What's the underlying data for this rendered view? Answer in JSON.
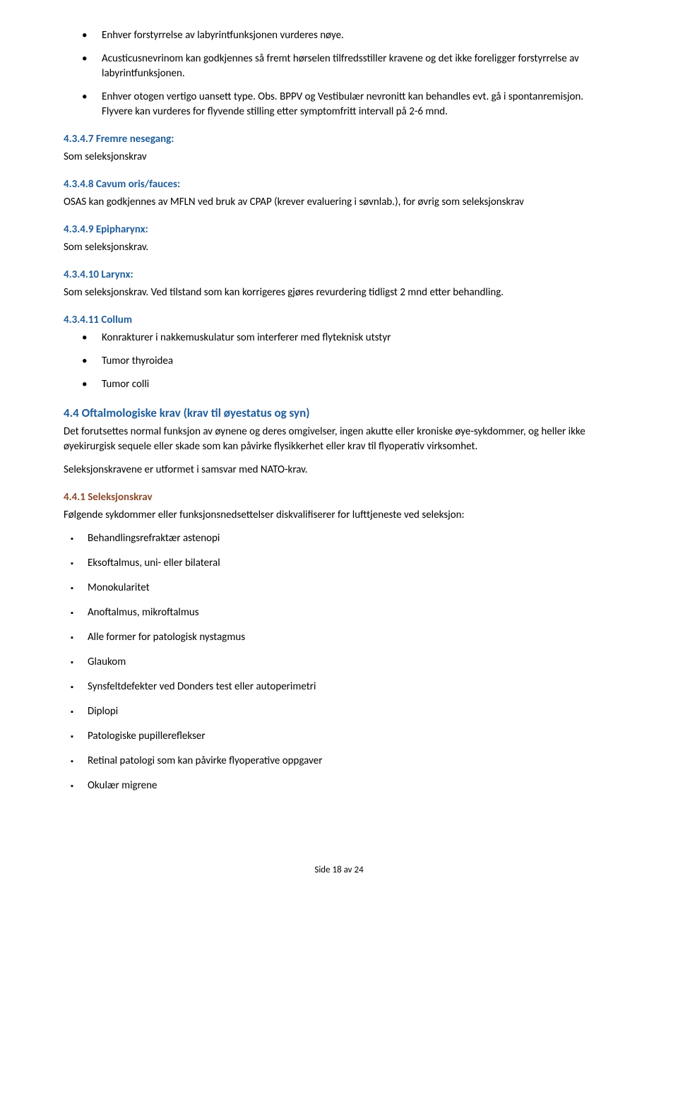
{
  "colors": {
    "heading_blue": "#1f5d9a",
    "heading_brown": "#8b4a2b",
    "text": "#000000",
    "background": "#ffffff"
  },
  "typography": {
    "body_fontsize_pt": 11,
    "heading_fontsize_pt": 12,
    "font_family": "Segoe UI / Calibri"
  },
  "top_bullets": [
    "Enhver forstyrrelse av labyrintfunksjonen vurderes nøye.",
    "Acusticusnevrinom kan godkjennes så fremt hørselen tilfredsstiller kravene og det ikke foreligger forstyrrelse av labyrintfunksjonen.",
    "Enhver otogen vertigo uansett type. Obs. BPPV og Vestibulær nevronitt kan behandles evt. gå i spontanremisjon. Flyvere kan vurderes for flyvende stilling etter symptomfritt intervall på 2-6 mnd."
  ],
  "s4347": {
    "title": "4.3.4.7 Fremre nesegang:",
    "body": "Som seleksjonskrav"
  },
  "s4348": {
    "title": "4.3.4.8 Cavum oris/fauces:",
    "body": "OSAS kan godkjennes av MFLN ved bruk av CPAP (krever evaluering i søvnlab.), for øvrig som seleksjonskrav"
  },
  "s4349": {
    "title": "4.3.4.9 Epipharynx:",
    "body": "Som seleksjonskrav."
  },
  "s43410": {
    "title": "4.3.4.10 Larynx:",
    "body": "Som seleksjonskrav. Ved tilstand som kan korrigeres gjøres revurdering tidligst 2 mnd etter behandling."
  },
  "s43411": {
    "title": "4.3.4.11  Collum",
    "bullets": [
      "Konrakturer i nakkemuskulatur som interferer med flyteknisk utstyr",
      "Tumor thyroidea",
      "Tumor colli"
    ]
  },
  "s44": {
    "title": "4.4 Oftalmologiske krav (krav til øyestatus og syn)",
    "body1": "Det forutsettes normal funksjon av øynene og deres omgivelser, ingen akutte eller kroniske øye-sykdommer, og heller ikke øyekirurgisk sequele eller skade som kan påvirke flysikkerhet eller krav til flyoperativ virksomhet.",
    "body2": "Seleksjonskravene er utformet i samsvar med NATO-krav."
  },
  "s441": {
    "title": "4.4.1 Seleksjonskrav",
    "intro": "Følgende sykdommer eller funksjonsnedsettelser diskvalifiserer for lufttjeneste ved seleksjon:",
    "items": [
      "Behandlingsrefraktær astenopi",
      "Eksoftalmus, uni- eller bilateral",
      "Monokularitet",
      "Anoftalmus, mikroftalmus",
      "Alle former for patologisk nystagmus",
      "Glaukom",
      "Synsfeltdefekter ved Donders test eller autoperimetri",
      "Diplopi",
      "Patologiske pupillereflekser",
      "Retinal patologi som kan påvirke flyoperative oppgaver",
      "Okulær migrene"
    ]
  },
  "footer": "Side 18 av 24"
}
